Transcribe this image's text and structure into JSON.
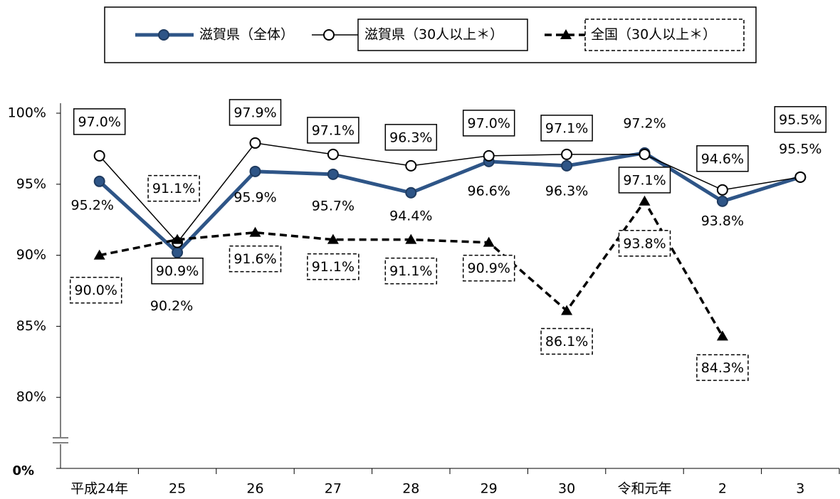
{
  "chart_data": {
    "type": "line",
    "categories": [
      "平成24年",
      "25",
      "26",
      "27",
      "28",
      "29",
      "30",
      "令和元年",
      "2",
      "3"
    ],
    "series": [
      {
        "name": "滋賀県（全体）",
        "color": "#2e5587",
        "marker": "filled-circle",
        "dash": false,
        "label_style": "plain",
        "values": [
          95.2,
          90.2,
          95.9,
          95.7,
          94.4,
          96.6,
          96.3,
          97.2,
          93.8,
          95.5
        ],
        "value_labels": [
          "95.2%",
          "90.2%",
          "95.9%",
          "95.7%",
          "94.4%",
          "96.6%",
          "96.3%",
          "97.2%",
          "93.8%",
          "95.5%"
        ]
      },
      {
        "name": "滋賀県（30人以上＊）",
        "color": "#000000",
        "marker": "open-circle",
        "dash": false,
        "label_style": "box",
        "values": [
          97.0,
          90.9,
          97.9,
          97.1,
          96.3,
          97.0,
          97.1,
          97.1,
          94.6,
          95.5
        ],
        "value_labels": [
          "97.0%",
          "90.9%",
          "97.9%",
          "97.1%",
          "96.3%",
          "97.0%",
          "97.1%",
          "97.1%",
          "94.6%",
          "95.5%"
        ]
      },
      {
        "name": "全国（30人以上＊）",
        "color": "#000000",
        "marker": "triangle",
        "dash": true,
        "label_style": "dashed-box",
        "values": [
          90.0,
          91.1,
          91.6,
          91.1,
          91.1,
          90.9,
          86.1,
          93.8,
          84.3,
          null
        ],
        "value_labels": [
          "90.0%",
          "91.1%",
          "91.6%",
          "91.1%",
          "91.1%",
          "90.9%",
          "86.1%",
          "93.8%",
          "84.3%",
          null
        ]
      }
    ],
    "ylim": [
      0,
      100
    ],
    "ybreak": [
      0,
      75
    ],
    "yticks": [
      {
        "value": 0,
        "label": "0%"
      },
      {
        "value": 80,
        "label": "80%"
      },
      {
        "value": 85,
        "label": "85%"
      },
      {
        "value": 90,
        "label": "90%"
      },
      {
        "value": 95,
        "label": "95%"
      },
      {
        "value": 100,
        "label": "100%"
      }
    ],
    "legend": "top",
    "grid": false
  }
}
